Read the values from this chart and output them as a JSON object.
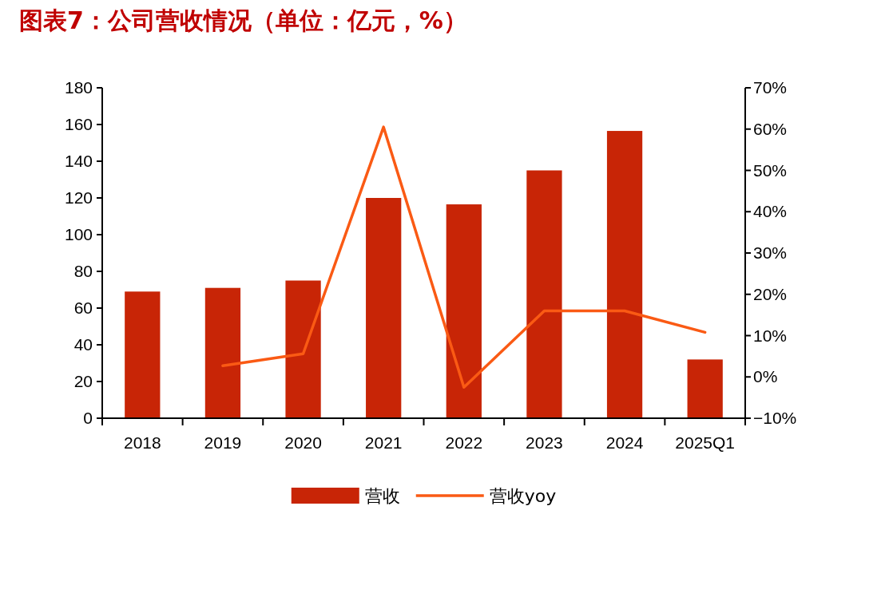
{
  "chart_data": {
    "type": "bar",
    "title": "图表7：公司营收情况（单位：亿元，%）",
    "categories": [
      "2018",
      "2019",
      "2020",
      "2021",
      "2022",
      "2023",
      "2024",
      "2025Q1"
    ],
    "series": [
      {
        "name": "营收",
        "color": "#c82506",
        "values": [
          69,
          71,
          75,
          120,
          116.5,
          135,
          156.5,
          32
        ]
      },
      {
        "name": "营收yoy",
        "type": "line",
        "axis": "y2",
        "color": "#fa5a14",
        "values": [
          null,
          2.7,
          5.6,
          60.5,
          -2.5,
          16,
          16,
          10.8
        ]
      }
    ],
    "ylim": [
      0,
      180
    ],
    "yticks": [
      0,
      20,
      40,
      60,
      80,
      100,
      120,
      140,
      160,
      180
    ],
    "y2lim": [
      -10,
      70
    ],
    "y2ticks": [
      {
        "value": -10,
        "label": "−10%"
      },
      {
        "value": 0,
        "label": "0%"
      },
      {
        "value": 10,
        "label": "10%"
      },
      {
        "value": 20,
        "label": "20%"
      },
      {
        "value": 30,
        "label": "30%"
      },
      {
        "value": 40,
        "label": "40%"
      },
      {
        "value": 50,
        "label": "50%"
      },
      {
        "value": 60,
        "label": "60%"
      },
      {
        "value": 70,
        "label": "70%"
      }
    ],
    "legend": "bottom",
    "grid": false
  }
}
